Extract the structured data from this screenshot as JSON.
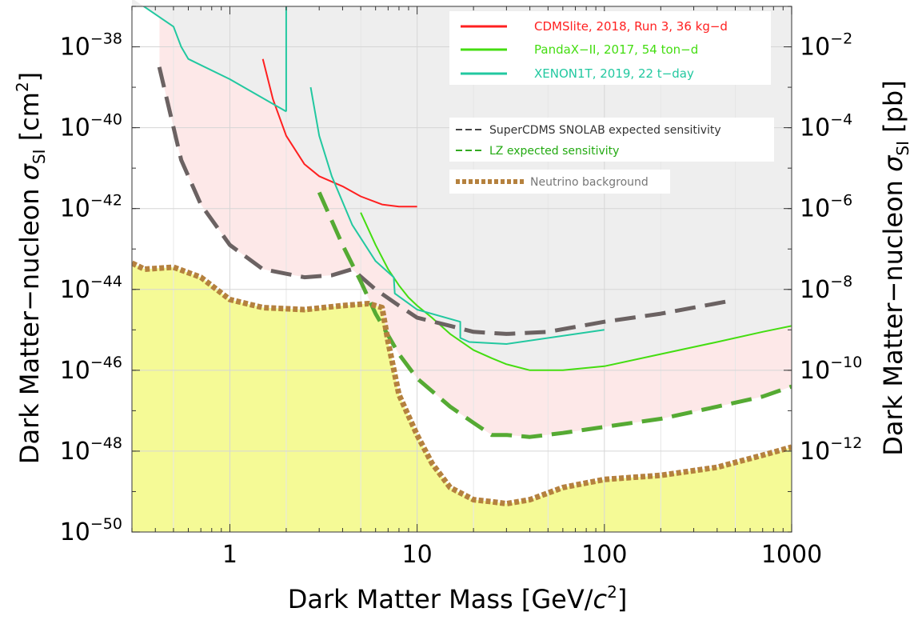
{
  "chart_data": {
    "type": "line",
    "xlabel_main": "Dark Matter Mass [GeV/",
    "xlabel_var": "c",
    "xlabel_sup": "2",
    "xlabel_end": "]",
    "ylabel_left_main": "Dark Matter−nucleon ",
    "ylabel_left_sym": "σ",
    "ylabel_left_sub": "SI",
    "ylabel_left_unit": " [cm",
    "ylabel_left_unit_sup": "2",
    "ylabel_left_end": "]",
    "ylabel_right_main": "Dark Matter−nucleon ",
    "ylabel_right_sym": "σ",
    "ylabel_right_sub": "SI",
    "ylabel_right_unit": " [pb]",
    "x_scale": "log",
    "y_scale": "log",
    "xlim": [
      0.3,
      1000
    ],
    "ylim": [
      1e-50,
      1e-37
    ],
    "grid": true,
    "x_ticks": [
      {
        "value": 1,
        "label": "1"
      },
      {
        "value": 10,
        "label": "10"
      },
      {
        "value": 100,
        "label": "100"
      },
      {
        "value": 1000,
        "label": "1000"
      }
    ],
    "y_ticks_left": [
      {
        "exp": -38,
        "base": "10",
        "sup": "−38"
      },
      {
        "exp": -40,
        "base": "10",
        "sup": "−40"
      },
      {
        "exp": -42,
        "base": "10",
        "sup": "−42"
      },
      {
        "exp": -44,
        "base": "10",
        "sup": "−44"
      },
      {
        "exp": -46,
        "base": "10",
        "sup": "−46"
      },
      {
        "exp": -48,
        "base": "10",
        "sup": "−48"
      },
      {
        "exp": -50,
        "base": "10",
        "sup": "−50"
      }
    ],
    "y_ticks_right": [
      {
        "exp": -38,
        "base": "10",
        "sup": "−2"
      },
      {
        "exp": -40,
        "base": "10",
        "sup": "−4"
      },
      {
        "exp": -42,
        "base": "10",
        "sup": "−6"
      },
      {
        "exp": -44,
        "base": "10",
        "sup": "−8"
      },
      {
        "exp": -46,
        "base": "10",
        "sup": "−10"
      },
      {
        "exp": -48,
        "base": "10",
        "sup": "−12"
      }
    ],
    "excluded_region_color": "#eeeeee",
    "projected_region_color": "#fde8e8",
    "neutrino_floor_color": "#f5fa96",
    "series": [
      {
        "name": "CDMSlite, 2018, Run 3, 36 kg−d",
        "color": "#ff2020",
        "style": "solid",
        "x": [
          1.5,
          1.7,
          2.0,
          2.5,
          3.0,
          4.0,
          5.0,
          6.5,
          8.0,
          10.0
        ],
        "y": [
          -38.3,
          -39.3,
          -40.2,
          -40.9,
          -41.2,
          -41.45,
          -41.7,
          -41.9,
          -41.95,
          -41.95
        ]
      },
      {
        "name": "PandaX−II, 2017, 54 ton−d",
        "color": "#44dd11",
        "style": "solid",
        "x": [
          5.0,
          6.0,
          7.0,
          8.0,
          9.0,
          10.0,
          12.0,
          15.0,
          20.0,
          25.0,
          30.0,
          40.0,
          60.0,
          100.0,
          200.0,
          400.0,
          700.0,
          1000.0
        ],
        "y": [
          -42.1,
          -42.9,
          -43.5,
          -43.9,
          -44.2,
          -44.4,
          -44.7,
          -45.1,
          -45.5,
          -45.7,
          -45.85,
          -46.0,
          -46.0,
          -45.9,
          -45.6,
          -45.3,
          -45.05,
          -44.9
        ]
      },
      {
        "name": "XENON1T, 2019, 22 t−day",
        "color": "#22c8a0",
        "style": "solid",
        "segments": [
          {
            "x": [
              0.3,
              0.5,
              0.55,
              0.6,
              1.0,
              2.0
            ],
            "y": [
              -36.8,
              -37.5,
              -38.0,
              -38.3,
              -38.8,
              -39.6
            ]
          },
          {
            "x": [
              2.0,
              2.0
            ],
            "y": [
              -39.6,
              -36.8
            ]
          },
          {
            "x": [
              2.7,
              3.0,
              3.5,
              4.5,
              6.0,
              7.5,
              7.6,
              10.0,
              17.0,
              17.0,
              19.0,
              30.0,
              100.0
            ],
            "y": [
              -39.0,
              -40.2,
              -41.2,
              -42.4,
              -43.3,
              -43.7,
              -44.1,
              -44.5,
              -44.8,
              -45.2,
              -45.3,
              -45.35,
              -45.0
            ]
          }
        ]
      },
      {
        "name": "SuperCDMS SNOLAB expected sensitivity",
        "color": "#6b6262",
        "style": "dashed",
        "x": [
          0.42,
          0.55,
          0.7,
          1.0,
          1.5,
          2.5,
          3.5,
          4.5,
          6.0,
          8.0,
          10.0,
          15.0,
          20.0,
          30.0,
          50.0,
          100.0,
          200.0,
          450.0
        ],
        "y": [
          -38.5,
          -40.8,
          -41.9,
          -42.9,
          -43.5,
          -43.7,
          -43.65,
          -43.5,
          -44.0,
          -44.4,
          -44.7,
          -44.9,
          -45.05,
          -45.1,
          -45.05,
          -44.8,
          -44.6,
          -44.3
        ]
      },
      {
        "name": "LZ expected sensitivity",
        "color": "#55aa33",
        "style": "dashed",
        "x": [
          3.0,
          4.0,
          5.0,
          6.0,
          8.0,
          10.0,
          15.0,
          20.0,
          25.0,
          30.0,
          40.0,
          60.0,
          100.0,
          200.0,
          400.0,
          700.0,
          1000.0
        ],
        "y": [
          -41.6,
          -42.9,
          -43.8,
          -44.6,
          -45.6,
          -46.2,
          -46.9,
          -47.3,
          -47.6,
          -47.6,
          -47.65,
          -47.55,
          -47.4,
          -47.2,
          -46.9,
          -46.65,
          -46.4
        ]
      },
      {
        "name": "Neutrino background",
        "color": "#b5813e",
        "style": "dotted",
        "x": [
          0.3,
          0.35,
          0.5,
          0.7,
          1.0,
          1.5,
          2.5,
          4.0,
          5.5,
          6.5,
          7.0,
          8.0,
          10.0,
          12.0,
          15.0,
          20.0,
          25.0,
          30.0,
          40.0,
          60.0,
          100.0,
          200.0,
          400.0,
          700.0,
          1000.0
        ],
        "y": [
          -43.35,
          -43.5,
          -43.45,
          -43.7,
          -44.25,
          -44.45,
          -44.5,
          -44.4,
          -44.35,
          -44.45,
          -45.3,
          -46.6,
          -47.6,
          -48.3,
          -48.9,
          -49.2,
          -49.25,
          -49.3,
          -49.2,
          -48.9,
          -48.7,
          -48.6,
          -48.4,
          -48.1,
          -47.9
        ]
      }
    ],
    "legend": {
      "entries": [
        {
          "label": "CDMSlite, 2018, Run 3, 36 kg−d",
          "color": "#ff2020",
          "style": "solid"
        },
        {
          "label": "PandaX−II, 2017, 54 ton−d",
          "color": "#44dd11",
          "style": "solid"
        },
        {
          "label": "XENON1T, 2019, 22 t−day",
          "color": "#22c8a0",
          "style": "solid"
        },
        {
          "label": "SuperCDMS SNOLAB expected sensitivity",
          "color": "#444444",
          "text_color": "#333333",
          "style": "dashed"
        },
        {
          "label": "LZ expected sensitivity",
          "color": "#33aa22",
          "text_color": "#22aa11",
          "style": "dashed"
        },
        {
          "label": "Neutrino background",
          "color": "#b5813e",
          "text_color": "#777777",
          "style": "dotted"
        }
      ]
    }
  }
}
